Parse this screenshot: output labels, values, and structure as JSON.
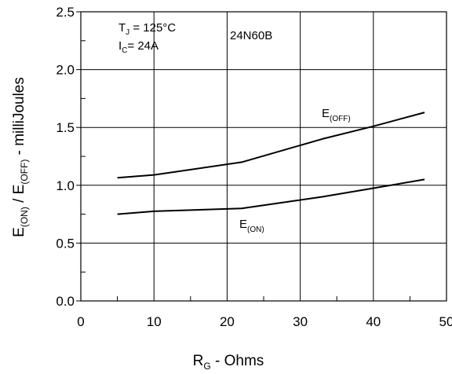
{
  "chart_data": {
    "type": "line",
    "xlabel": {
      "main": "R",
      "sub": "G",
      "rest": " - Ohms"
    },
    "ylabel": {
      "p1": "E",
      "s1": "(ON)",
      "p2": " / E",
      "s2": "(OFF)",
      "p3": " - milliJoules"
    },
    "xlim": [
      0,
      50
    ],
    "ylim": [
      0,
      2.5
    ],
    "x_ticks": [
      0,
      10,
      20,
      30,
      40,
      50
    ],
    "y_ticks": [
      "0.0",
      "0.5",
      "1.0",
      "1.5",
      "2.0",
      "2.5"
    ],
    "x_tick_labels": [
      "0",
      "10",
      "20",
      "30",
      "40",
      "50"
    ],
    "grid": true,
    "series": [
      {
        "name": "E(OFF)",
        "x": [
          5,
          10,
          22,
          33,
          40,
          47
        ],
        "y": [
          1.065,
          1.09,
          1.2,
          1.4,
          1.51,
          1.63
        ]
      },
      {
        "name": "E(ON)",
        "x": [
          5,
          10,
          22,
          33,
          40,
          47
        ],
        "y": [
          0.75,
          0.775,
          0.8,
          0.9,
          0.975,
          1.05
        ]
      }
    ],
    "series_labels": {
      "off": {
        "main": "E",
        "sub": "(OFF)"
      },
      "on": {
        "main": "E",
        "sub": "(ON)"
      }
    },
    "annotations": {
      "tj": {
        "main": "T",
        "sub": "J",
        "rest": " = 125°C"
      },
      "ic": {
        "main": "I",
        "sub": "C",
        "rest": "= 24A"
      },
      "part": "24N60B"
    },
    "colors": {
      "line": "#000000",
      "grid": "#000000",
      "background": "#ffffff"
    }
  }
}
